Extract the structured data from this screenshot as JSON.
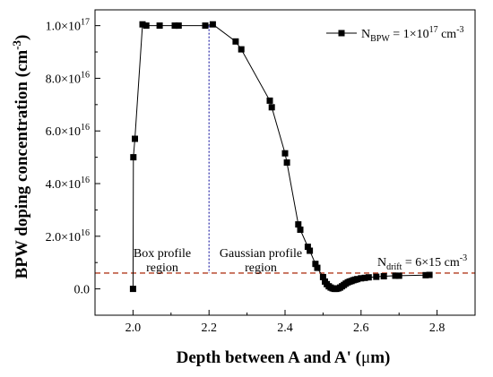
{
  "chart_data": {
    "type": "line",
    "xlabel_main": "Depth between A and A' (",
    "xlabel_mu": "μ",
    "xlabel_tail": "m)",
    "ylabel_main": "BPW doping concentration (cm",
    "ylabel_sup": "-3",
    "ylabel_tail": ")",
    "xlim": [
      1.9,
      2.9
    ],
    "ylim": [
      -0.1,
      1.06
    ],
    "y_scale_note": "values in units of 1e17 cm^-3",
    "x_ticks": [
      {
        "v": 2.0,
        "label": "2.0"
      },
      {
        "v": 2.2,
        "label": "2.2"
      },
      {
        "v": 2.4,
        "label": "2.4"
      },
      {
        "v": 2.6,
        "label": "2.6"
      },
      {
        "v": 2.8,
        "label": "2.8"
      }
    ],
    "y_ticks": [
      {
        "v": 0.0,
        "mant": "0.0",
        "exp": ""
      },
      {
        "v": 0.2,
        "mant": "2.0×10",
        "exp": "16"
      },
      {
        "v": 0.4,
        "mant": "4.0×10",
        "exp": "16"
      },
      {
        "v": 0.6,
        "mant": "6.0×10",
        "exp": "16"
      },
      {
        "v": 0.8,
        "mant": "8.0×10",
        "exp": "16"
      },
      {
        "v": 1.0,
        "mant": "1.0×10",
        "exp": "17"
      }
    ],
    "legend": {
      "position": "top-right",
      "n": "N",
      "sub": "BPW",
      "eq": " = 1×10",
      "exp": "17",
      "unit": " cm",
      "unit_exp": "-3"
    },
    "series": [
      {
        "color": "#000000",
        "marker": "square",
        "x": [
          2.0,
          2.001,
          2.005,
          2.025,
          2.035,
          2.07,
          2.11,
          2.12,
          2.19,
          2.21,
          2.27,
          2.285,
          2.36,
          2.365,
          2.4,
          2.405,
          2.435,
          2.44,
          2.46,
          2.465,
          2.48,
          2.485,
          2.5,
          2.505,
          2.51,
          2.515,
          2.52,
          2.525,
          2.53,
          2.535,
          2.54,
          2.545,
          2.55,
          2.555,
          2.56,
          2.565,
          2.57,
          2.575,
          2.58,
          2.585,
          2.59,
          2.6,
          2.61,
          2.62,
          2.64,
          2.66,
          2.69,
          2.7,
          2.77,
          2.78
        ],
        "y": [
          0.0,
          0.5,
          0.57,
          1.005,
          1.0,
          1.0,
          1.0,
          1.0,
          1.0,
          1.005,
          0.94,
          0.91,
          0.715,
          0.69,
          0.515,
          0.48,
          0.245,
          0.225,
          0.16,
          0.145,
          0.095,
          0.08,
          0.045,
          0.028,
          0.018,
          0.01,
          0.005,
          0.002,
          0.0,
          0.0,
          0.002,
          0.005,
          0.01,
          0.015,
          0.02,
          0.025,
          0.028,
          0.03,
          0.033,
          0.035,
          0.037,
          0.04,
          0.042,
          0.044,
          0.046,
          0.048,
          0.05,
          0.05,
          0.052,
          0.053
        ]
      }
    ],
    "divider_x": 2.2,
    "ndrift_y": 0.06,
    "annotations": {
      "box_line1": "Box profile",
      "box_line2": "region",
      "gauss_line1": "Gaussian profile",
      "gauss_line2": "region",
      "ndrift_n": "N",
      "ndrift_sub": "drift",
      "ndrift_rest": " = 6×15 cm",
      "ndrift_exp": "-3"
    },
    "colors": {
      "divider": "#2a2aa8",
      "ndrift_line": "#b23a1e",
      "series": "#000000"
    }
  }
}
